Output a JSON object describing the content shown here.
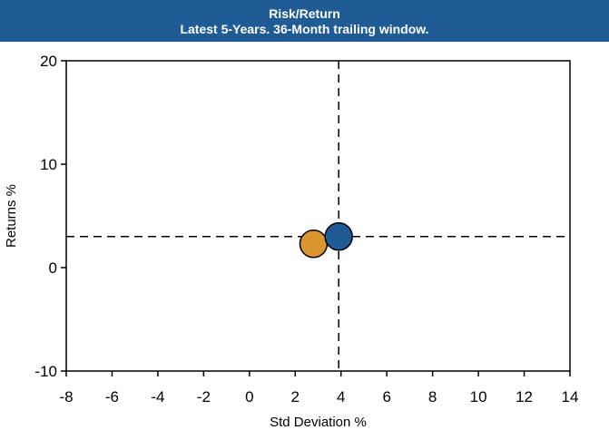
{
  "chart_data": {
    "type": "scatter",
    "title": "Risk/Return",
    "subtitle": "Latest 5-Years. 36-Month trailing window.",
    "xlabel": "Std Deviation %",
    "ylabel": "Returns %",
    "xlim": [
      -8,
      14
    ],
    "ylim": [
      -10,
      20
    ],
    "xticks": [
      -8,
      -6,
      -4,
      -2,
      0,
      2,
      4,
      6,
      8,
      10,
      12,
      14
    ],
    "yticks": [
      -10,
      0,
      10,
      20
    ],
    "grid": false,
    "reference_lines": {
      "x": 3.9,
      "y": 3.0,
      "style": "dashed"
    },
    "series": [
      {
        "points": [
          {
            "x": 2.8,
            "y": 2.3
          }
        ],
        "color": "#d9952e"
      },
      {
        "points": [
          {
            "x": 3.9,
            "y": 3.0
          }
        ],
        "color": "#1f5b94"
      }
    ]
  }
}
